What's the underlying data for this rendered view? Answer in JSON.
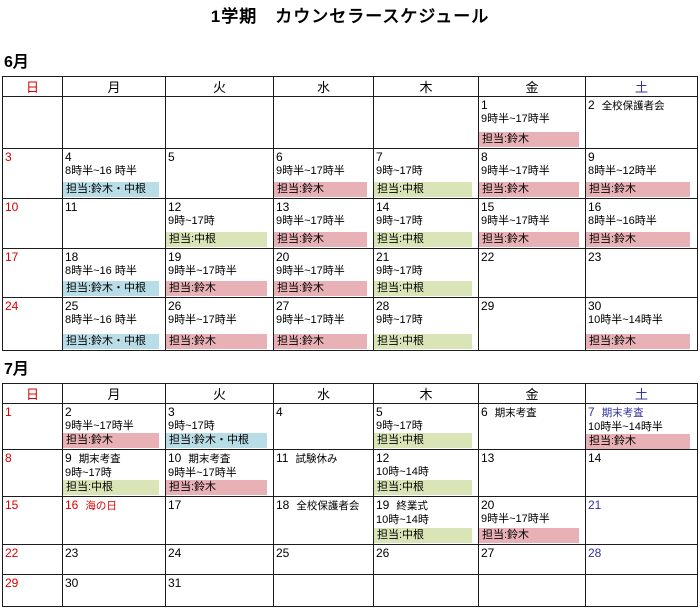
{
  "title": "1学期　カウンセラースケジュール",
  "weekdays": [
    "日",
    "月",
    "火",
    "水",
    "木",
    "金",
    "土"
  ],
  "weekday_colors": [
    "red",
    "black",
    "black",
    "black",
    "black",
    "black",
    "navy"
  ],
  "colors": {
    "red": "#d60000",
    "navy": "#3333aa",
    "black": "#000000",
    "highlight_pink": "#e7b1b5",
    "highlight_green": "#d9e5b7",
    "highlight_blue": "#b9dde6"
  },
  "months": [
    {
      "label": "6月",
      "weeks": [
        [
          {},
          {},
          {},
          {},
          {},
          {
            "day": "1",
            "time": "9時半~17時半",
            "staff": "担当:鈴木",
            "hl": "pink"
          },
          {
            "day": "2",
            "event": "全校保護者会"
          }
        ],
        [
          {
            "day": "3",
            "day_color": "red"
          },
          {
            "day": "4",
            "time": "8時半~16 時半",
            "staff": "担当:鈴木・中根",
            "hl": "blue"
          },
          {
            "day": "5"
          },
          {
            "day": "6",
            "time": "9時半~17時半",
            "staff": "担当:鈴木",
            "hl": "pink"
          },
          {
            "day": "7",
            "time": "9時~17時",
            "staff": "担当:中根",
            "hl": "green"
          },
          {
            "day": "8",
            "time": "9時半~17時半",
            "staff": "担当:鈴木",
            "hl": "pink"
          },
          {
            "day": "9",
            "time": "8時半~12時半",
            "staff": "担当:鈴木",
            "hl": "pink"
          }
        ],
        [
          {
            "day": "10",
            "day_color": "red"
          },
          {
            "day": "11"
          },
          {
            "day": "12",
            "time": "9時~17時",
            "staff": "担当:中根",
            "hl": "green"
          },
          {
            "day": "13",
            "time": "9時半~17時半",
            "staff": "担当:鈴木",
            "hl": "pink"
          },
          {
            "day": "14",
            "time": "9時~17時",
            "staff": "担当:中根",
            "hl": "green"
          },
          {
            "day": "15",
            "time": "9時半~17時半",
            "staff": "担当:鈴木",
            "hl": "pink"
          },
          {
            "day": "16",
            "time": "8時半~16時半",
            "staff": "担当:鈴木",
            "hl": "pink"
          }
        ],
        [
          {
            "day": "17",
            "day_color": "red"
          },
          {
            "day": "18",
            "time": "8時半~16 時半",
            "staff": "担当:鈴木・中根",
            "hl": "blue"
          },
          {
            "day": "19",
            "time": "9時半~17時半",
            "staff": "担当:鈴木",
            "hl": "pink"
          },
          {
            "day": "20",
            "time": "9時半~17時半",
            "staff": "担当:鈴木",
            "hl": "pink"
          },
          {
            "day": "21",
            "time": "9時~17時",
            "staff": "担当:中根",
            "hl": "green"
          },
          {
            "day": "22"
          },
          {
            "day": "23"
          }
        ],
        [
          {
            "day": "24",
            "day_color": "red"
          },
          {
            "day": "25",
            "time": "8時半~16 時半",
            "staff": "担当:鈴木・中根",
            "hl": "blue"
          },
          {
            "day": "26",
            "time": "9時半~17時半",
            "staff": "担当:鈴木",
            "hl": "pink"
          },
          {
            "day": "27",
            "time": "9時半~17時半",
            "staff": "担当:鈴木",
            "hl": "pink"
          },
          {
            "day": "28",
            "time": "9時~17時",
            "staff": "担当:中根",
            "hl": "green"
          },
          {
            "day": "29"
          },
          {
            "day": "30",
            "time": "10時半~14時半",
            "staff": "担当:鈴木",
            "hl": "pink"
          }
        ]
      ]
    },
    {
      "label": "7月",
      "weeks": [
        [
          {
            "day": "1",
            "day_color": "red"
          },
          {
            "day": "2",
            "time": "9時半~17時半",
            "staff": "担当:鈴木",
            "hl": "pink"
          },
          {
            "day": "3",
            "time": "9時~17時",
            "staff": "担当:鈴木・中根",
            "hl": "blue"
          },
          {
            "day": "4"
          },
          {
            "day": "5",
            "time": "9時~17時",
            "staff": "担当:中根",
            "hl": "green"
          },
          {
            "day": "6",
            "event": "期末考査"
          },
          {
            "day": "7",
            "event": "期末考査",
            "day_color": "navy",
            "time": "10時半~14時半",
            "staff": "担当:鈴木",
            "hl": "pink"
          }
        ],
        [
          {
            "day": "8",
            "day_color": "red"
          },
          {
            "day": "9",
            "event": "期末考査",
            "time": "9時~17時",
            "staff": "担当:中根",
            "hl": "green"
          },
          {
            "day": "10",
            "event": "期末考査",
            "time": "9時半~17時半",
            "staff": "担当:鈴木",
            "hl": "pink"
          },
          {
            "day": "11",
            "event": "試験休み"
          },
          {
            "day": "12",
            "time": "10時~14時",
            "staff": "担当:中根",
            "hl": "green"
          },
          {
            "day": "13"
          },
          {
            "day": "14"
          }
        ],
        [
          {
            "day": "15",
            "day_color": "red"
          },
          {
            "day": "16",
            "event": "海の日",
            "day_color": "red"
          },
          {
            "day": "17"
          },
          {
            "day": "18",
            "event": "全校保護者会"
          },
          {
            "day": "19",
            "event": "終業式",
            "time": "10時~14時",
            "staff": "担当:中根",
            "hl": "green"
          },
          {
            "day": "20",
            "time": "9時半~17時半",
            "staff": "担当:鈴木",
            "hl": "pink"
          },
          {
            "day": "21",
            "day_color": "navy"
          }
        ],
        [
          {
            "day": "22",
            "day_color": "red"
          },
          {
            "day": "23"
          },
          {
            "day": "24"
          },
          {
            "day": "25"
          },
          {
            "day": "26"
          },
          {
            "day": "27"
          },
          {
            "day": "28",
            "day_color": "navy"
          }
        ],
        [
          {
            "day": "29",
            "day_color": "red"
          },
          {
            "day": "30"
          },
          {
            "day": "31"
          },
          {},
          {},
          {},
          {}
        ]
      ]
    }
  ]
}
